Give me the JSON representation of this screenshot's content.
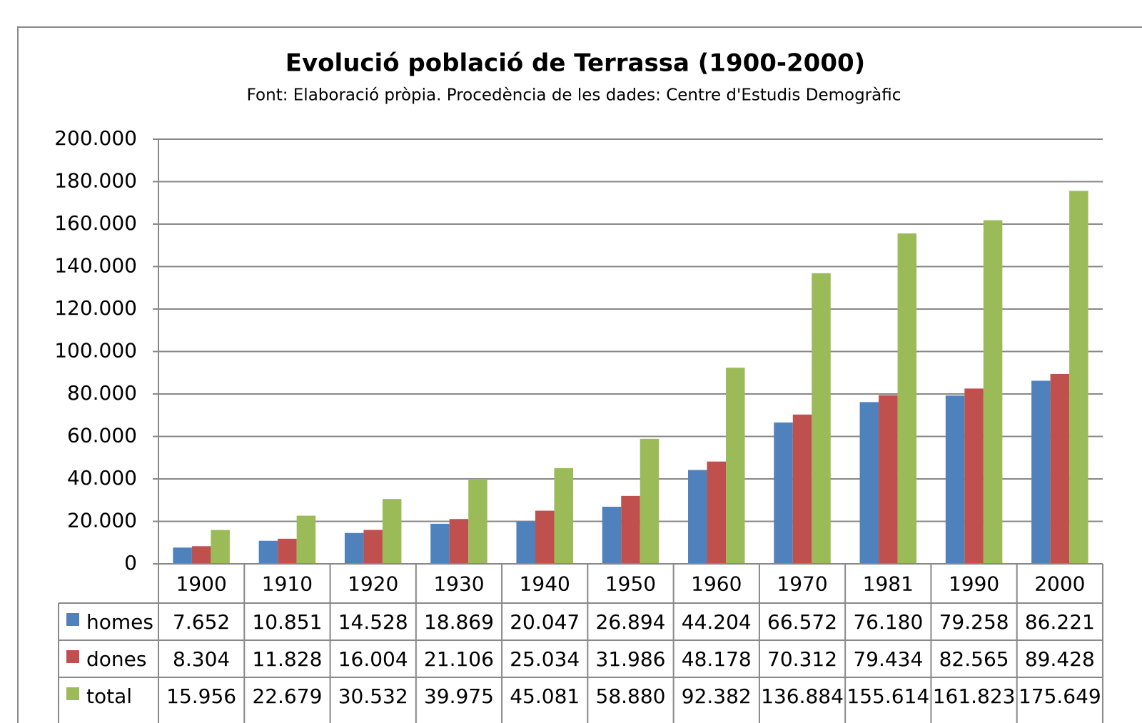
{
  "chart_data": {
    "type": "bar",
    "title": "Evolució població de Terrassa (1900-2000)",
    "subtitle": "Font: Elaboració pròpia. Procedència de les dades: Centre d'Estudis Demogràfic",
    "categories": [
      "1900",
      "1910",
      "1920",
      "1930",
      "1940",
      "1950",
      "1960",
      "1970",
      "1981",
      "1990",
      "2000"
    ],
    "series": [
      {
        "name": "homes",
        "color": "#4f81bd",
        "values": [
          7652,
          10851,
          14528,
          18869,
          20047,
          26894,
          44204,
          66572,
          76180,
          79258,
          86221
        ],
        "value_labels": [
          "7.652",
          "10.851",
          "14.528",
          "18.869",
          "20.047",
          "26.894",
          "44.204",
          "66.572",
          "76.180",
          "79.258",
          "86.221"
        ]
      },
      {
        "name": "dones",
        "color": "#c0504d",
        "values": [
          8304,
          11828,
          16004,
          21106,
          25034,
          31986,
          48178,
          70312,
          79434,
          82565,
          89428
        ],
        "value_labels": [
          "8.304",
          "11.828",
          "16.004",
          "21.106",
          "25.034",
          "31.986",
          "48.178",
          "70.312",
          "79.434",
          "82.565",
          "89.428"
        ]
      },
      {
        "name": "total",
        "color": "#9bbb59",
        "values": [
          15956,
          22679,
          30532,
          39975,
          45081,
          58880,
          92382,
          136884,
          155614,
          161823,
          175649
        ],
        "value_labels": [
          "15.956",
          "22.679",
          "30.532",
          "39.975",
          "45.081",
          "58.880",
          "92.382",
          "136.884",
          "155.614",
          "161.823",
          "175.649"
        ]
      }
    ],
    "ylim": [
      0,
      200000
    ],
    "yticks": [
      0,
      {
        "value": 20000,
        "label": "20.000"
      },
      {
        "value": 40000,
        "label": "40.000"
      },
      {
        "value": 60000,
        "label": "60.000"
      },
      {
        "value": 80000,
        "label": "80.000"
      },
      {
        "value": 100000,
        "label": "100.000"
      },
      {
        "value": 120000,
        "label": "120.000"
      },
      {
        "value": 140000,
        "label": "140.000"
      },
      {
        "value": 160000,
        "label": "160.000"
      },
      {
        "value": 180000,
        "label": "180.000"
      },
      {
        "value": 200000,
        "label": "200.000"
      }
    ],
    "grid": true
  }
}
